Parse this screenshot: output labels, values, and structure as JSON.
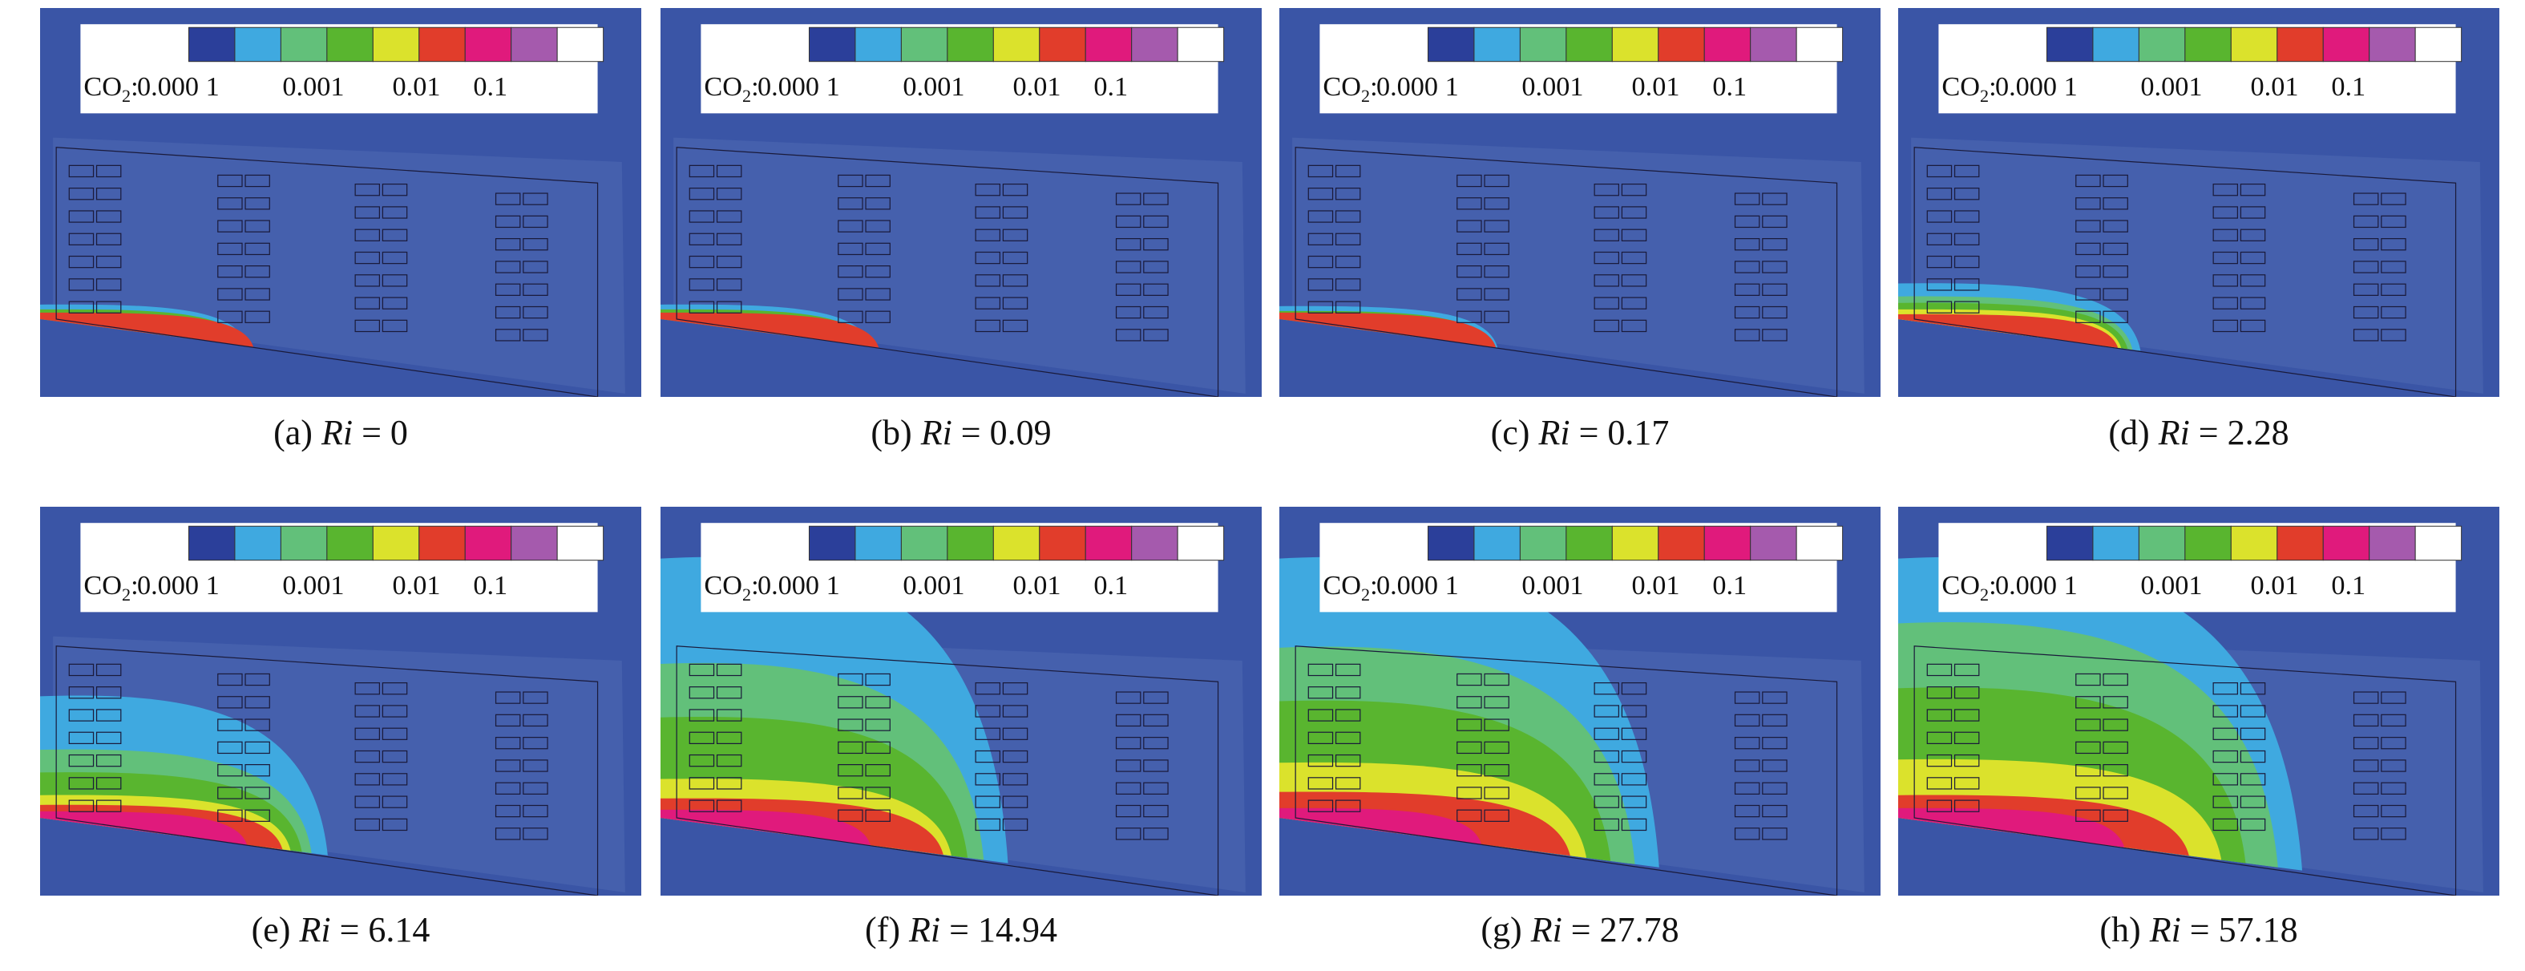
{
  "legend": {
    "prefix": "CO",
    "subscript": "2",
    "colon": ":",
    "ticks": [
      "0.000 1",
      "0.001",
      "0.01",
      "0.1"
    ],
    "colors": [
      "#2b3f9a",
      "#3fa9e0",
      "#62c07a",
      "#59b52f",
      "#dbe22c",
      "#e13d2b",
      "#e01a7c",
      "#a55aad",
      "#ffffff"
    ]
  },
  "panels": [
    {
      "label": "(a)",
      "variable": "Ri",
      "value": "= 0"
    },
    {
      "label": "(b)",
      "variable": "Ri",
      "value": "= 0.09"
    },
    {
      "label": "(c)",
      "variable": "Ri",
      "value": "= 0.17"
    },
    {
      "label": "(d)",
      "variable": "Ri",
      "value": "= 2.28"
    },
    {
      "label": "(e)",
      "variable": "Ri",
      "value": "= 6.14"
    },
    {
      "label": "(f)",
      "variable": "Ri",
      "value": "= 14.94"
    },
    {
      "label": "(g)",
      "variable": "Ri",
      "value": "= 27.78"
    },
    {
      "label": "(h)",
      "variable": "Ri",
      "value": "= 57.18"
    }
  ]
}
